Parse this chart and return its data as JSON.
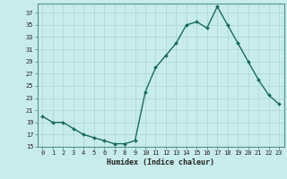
{
  "x": [
    0,
    1,
    2,
    3,
    4,
    5,
    6,
    7,
    8,
    9,
    10,
    11,
    12,
    13,
    14,
    15,
    16,
    17,
    18,
    19,
    20,
    21,
    22,
    23
  ],
  "y": [
    20,
    19,
    19,
    18,
    17,
    16.5,
    16,
    15.5,
    15.5,
    16,
    24,
    28,
    30,
    32,
    35,
    35.5,
    34.5,
    38,
    35,
    32,
    29,
    26,
    23.5,
    22
  ],
  "line_color": "#1a6b5a",
  "marker_color": "#1a6b5a",
  "bg_color": "#c8ecec",
  "grid_color": "#aad4d4",
  "xlabel": "Humidex (Indice chaleur)",
  "ylim": [
    15,
    38
  ],
  "xlim": [
    -0.5,
    23.5
  ],
  "yticks": [
    15,
    17,
    19,
    21,
    23,
    25,
    27,
    29,
    31,
    33,
    35,
    37
  ],
  "xticks": [
    0,
    1,
    2,
    3,
    4,
    5,
    6,
    7,
    8,
    9,
    10,
    11,
    12,
    13,
    14,
    15,
    16,
    17,
    18,
    19,
    20,
    21,
    22,
    23
  ],
  "xtick_labels": [
    "0",
    "1",
    "2",
    "3",
    "4",
    "5",
    "6",
    "7",
    "8",
    "9",
    "10",
    "11",
    "12",
    "13",
    "14",
    "15",
    "16",
    "17",
    "18",
    "19",
    "20",
    "21",
    "22",
    "23"
  ],
  "font_color": "#222222",
  "spine_color": "#5a9090",
  "tick_fontsize": 5.0,
  "xlabel_fontsize": 6.0
}
